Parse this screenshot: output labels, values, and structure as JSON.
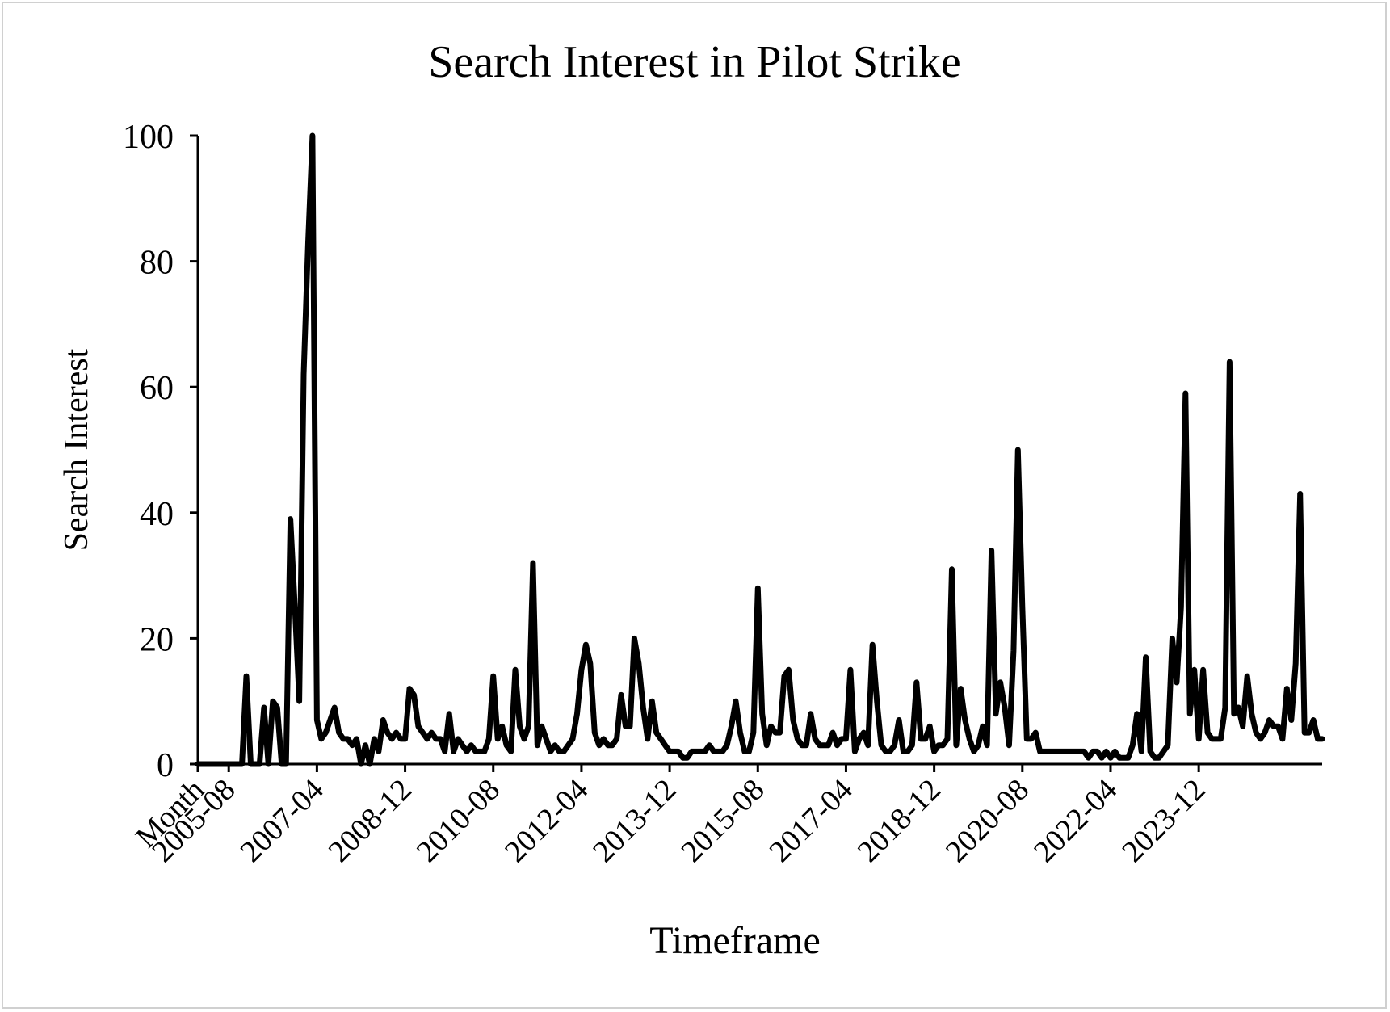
{
  "chart_data": {
    "type": "line",
    "title": "Search Interest in Pilot Strike",
    "xlabel": "Timeframe",
    "ylabel": "Search Interest",
    "ylim": [
      0,
      100
    ],
    "yticks": [
      0,
      20,
      40,
      60,
      80,
      100
    ],
    "xticks": [
      "Month",
      "2005-08",
      "2007-04",
      "2008-12",
      "2010-08",
      "2012-04",
      "2013-12",
      "2015-08",
      "2017-04",
      "2018-12",
      "2020-08",
      "2022-04",
      "2023-12"
    ],
    "grid": false,
    "legend": "none",
    "line_color": "#000000",
    "series": [
      {
        "values": [
          0,
          0,
          0,
          0,
          0,
          0,
          0,
          0,
          0,
          0,
          0,
          14,
          0,
          0,
          0,
          9,
          0,
          10,
          9,
          0,
          0,
          39,
          25,
          10,
          62,
          83,
          100,
          7,
          4,
          5,
          7,
          9,
          5,
          4,
          4,
          3,
          4,
          0,
          3,
          0,
          4,
          2,
          7,
          5,
          4,
          5,
          4,
          4,
          12,
          11,
          6,
          5,
          4,
          5,
          4,
          4,
          2,
          8,
          2,
          4,
          3,
          2,
          3,
          2,
          2,
          2,
          4,
          14,
          4,
          6,
          3,
          2,
          15,
          6,
          4,
          6,
          32,
          3,
          6,
          4,
          2,
          3,
          2,
          2,
          3,
          4,
          8,
          15,
          19,
          16,
          5,
          3,
          4,
          3,
          3,
          4,
          11,
          6,
          6,
          20,
          16,
          9,
          4,
          10,
          5,
          4,
          3,
          2,
          2,
          2,
          1,
          1,
          2,
          2,
          2,
          2,
          3,
          2,
          2,
          2,
          3,
          6,
          10,
          5,
          2,
          2,
          5,
          28,
          8,
          3,
          6,
          5,
          5,
          14,
          15,
          7,
          4,
          3,
          3,
          8,
          4,
          3,
          3,
          3,
          5,
          3,
          4,
          4,
          15,
          2,
          4,
          5,
          3,
          19,
          10,
          3,
          2,
          2,
          3,
          7,
          2,
          2,
          3,
          13,
          4,
          4,
          6,
          2,
          3,
          3,
          4,
          31,
          3,
          12,
          7,
          4,
          2,
          3,
          6,
          3,
          34,
          8,
          13,
          9,
          3,
          18,
          50,
          25,
          4,
          4,
          5,
          2,
          2,
          2,
          2,
          2,
          2,
          2,
          2,
          2,
          2,
          2,
          1,
          2,
          2,
          1,
          2,
          1,
          2,
          1,
          1,
          1,
          3,
          8,
          2,
          17,
          2,
          1,
          1,
          2,
          3,
          20,
          13,
          25,
          59,
          8,
          15,
          4,
          15,
          5,
          4,
          4,
          4,
          9,
          64,
          8,
          9,
          6,
          14,
          8,
          5,
          4,
          5,
          7,
          6,
          6,
          4,
          12,
          7,
          16,
          43,
          5,
          5,
          7,
          4,
          4
        ]
      }
    ]
  }
}
